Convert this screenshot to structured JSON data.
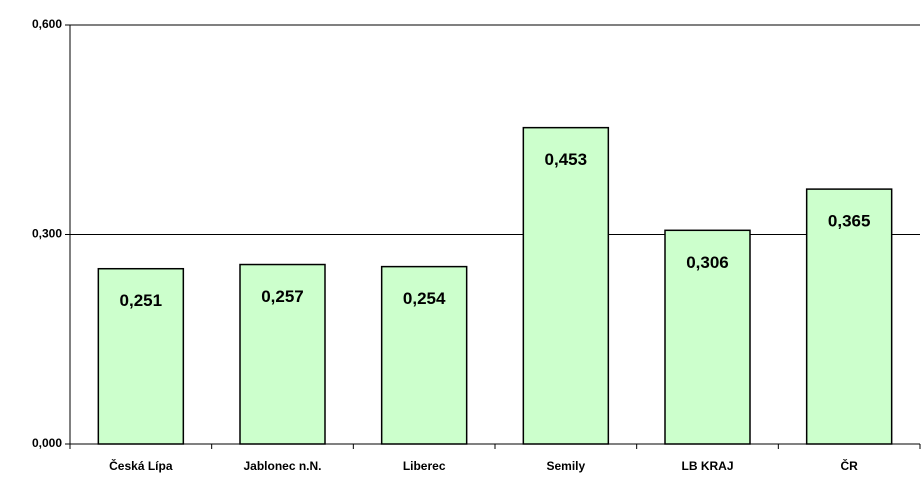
{
  "chart_data": {
    "type": "bar",
    "categories": [
      "Česká Lípa",
      "Jablonec n.N.",
      "Liberec",
      "Semily",
      "LB KRAJ",
      "ČR"
    ],
    "values": [
      0.251,
      0.257,
      0.254,
      0.453,
      0.306,
      0.365
    ],
    "value_labels": [
      "0,251",
      "0,257",
      "0,254",
      "0,453",
      "0,306",
      "0,365"
    ],
    "color": "#ccffcc",
    "ylim": [
      0,
      0.6
    ],
    "yticks": [
      {
        "value": 0,
        "label": "0,000"
      },
      {
        "value": 0.3,
        "label": "0,300"
      },
      {
        "value": 0.6,
        "label": "0,600"
      }
    ],
    "grid": true
  }
}
